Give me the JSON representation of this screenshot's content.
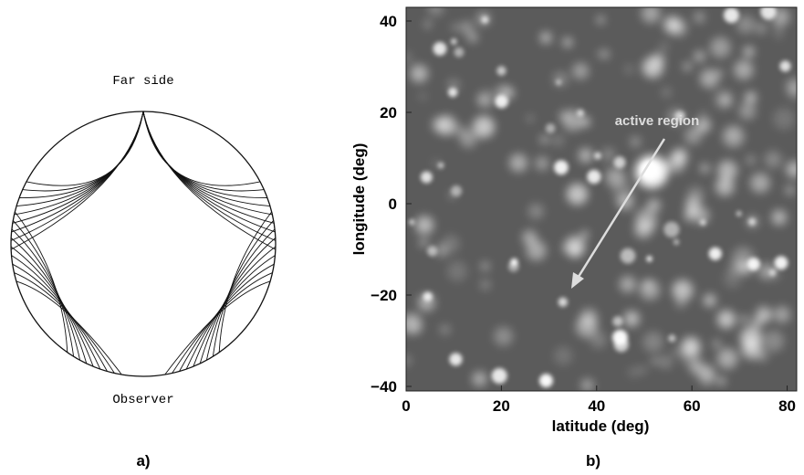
{
  "panel_a": {
    "top_label": "Far side",
    "bottom_label": "Observer",
    "caption": "a)"
  },
  "chart_data": {
    "type": "heatmap",
    "x_label": "latitude (deg)",
    "y_label": "longitude (deg)",
    "annotation": "active region",
    "caption": "b)",
    "xlim": [
      0,
      82
    ],
    "ylim": [
      -41,
      43
    ],
    "xticks": [
      0,
      20,
      40,
      60,
      80
    ],
    "yticks": [
      40,
      20,
      0,
      {
        "value": -20,
        "label": "−20"
      },
      {
        "value": -40,
        "label": "−40"
      }
    ]
  }
}
